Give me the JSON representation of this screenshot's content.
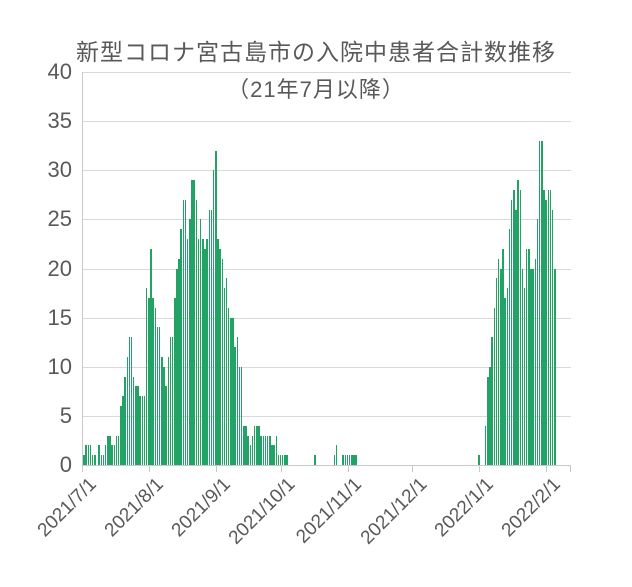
{
  "chart_data": {
    "type": "bar",
    "title": "新型コロナ宮古島市の入院中患者合計数推移",
    "subtitle": "（21年7月以降）",
    "xlabel": "",
    "ylabel": "",
    "ylim": [
      0,
      40
    ],
    "y_ticks": [
      0,
      5,
      10,
      15,
      20,
      25,
      30,
      35,
      40
    ],
    "grid": "horizontal",
    "legend": "none",
    "bar_color": "#21a366",
    "gridline_color": "#d9d9d9",
    "axis_color": "#c9c9c9",
    "text_color": "#595959",
    "x_tick_labels": [
      "2021/7/1",
      "2021/8/1",
      "2021/9/1",
      "2021/10/1",
      "2021/11/1",
      "2021/12/1",
      "2022/1/1",
      "2022/2/1"
    ],
    "months": [
      {
        "label": "2021/7/1",
        "days": [
          1,
          2,
          2,
          2,
          1,
          1,
          0,
          2,
          1,
          1,
          2,
          3,
          3,
          2,
          2,
          3,
          3,
          6,
          7,
          9,
          11,
          13,
          13,
          9,
          8,
          8,
          7,
          7,
          7,
          18,
          17
        ]
      },
      {
        "label": "2021/8/1",
        "days": [
          22,
          17,
          16,
          14,
          14,
          11,
          10,
          8,
          11,
          13,
          13,
          17,
          20,
          21,
          24,
          27,
          27,
          23,
          25,
          29,
          29,
          27,
          23,
          25,
          23,
          22,
          23,
          26,
          26,
          30,
          32
        ]
      },
      {
        "label": "2021/9/1",
        "days": [
          23,
          22,
          21,
          18,
          19,
          16,
          15,
          15,
          12,
          13,
          10,
          10,
          4,
          4,
          3,
          2,
          3,
          4,
          4,
          4,
          3,
          3,
          3,
          3,
          3,
          2,
          2,
          3,
          1,
          1
        ]
      },
      {
        "label": "2021/10/1",
        "days": [
          1,
          1,
          1,
          0,
          0,
          0,
          0,
          0,
          0,
          0,
          0,
          0,
          0,
          0,
          0,
          1,
          0,
          0,
          0,
          0,
          0,
          0,
          0,
          0,
          1,
          2,
          0,
          0,
          1,
          1,
          1
        ]
      },
      {
        "label": "2021/11/1",
        "days": [
          1,
          1,
          1,
          1,
          0,
          0,
          0,
          0,
          0,
          0,
          0,
          0,
          0,
          0,
          0,
          0,
          0,
          0,
          0,
          0,
          0,
          0,
          0,
          0,
          0,
          0,
          0,
          0,
          0,
          0
        ]
      },
      {
        "label": "2021/12/1",
        "days": [
          0,
          0,
          0,
          0,
          0,
          0,
          0,
          0,
          0,
          0,
          0,
          0,
          0,
          0,
          0,
          0,
          0,
          0,
          0,
          0,
          0,
          0,
          0,
          0,
          0,
          0,
          0,
          0,
          0,
          0,
          1
        ]
      },
      {
        "label": "2022/1/1",
        "days": [
          0,
          0,
          4,
          9,
          10,
          13,
          16,
          19,
          21,
          20,
          22,
          17,
          18,
          24,
          27,
          28,
          26,
          29,
          28,
          20,
          18,
          22,
          22,
          20,
          20,
          21,
          25,
          33,
          33,
          28,
          27
        ]
      },
      {
        "label": "2022/2/1",
        "days": [
          28,
          28,
          26,
          20
        ]
      }
    ]
  }
}
